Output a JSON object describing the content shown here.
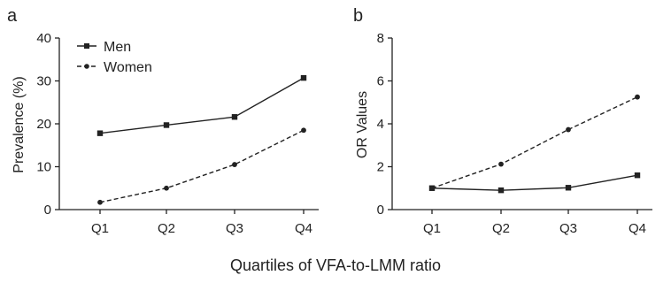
{
  "chart_data": [
    {
      "type": "line",
      "panel_label": "a",
      "categories": [
        "Q1",
        "Q2",
        "Q3",
        "Q4"
      ],
      "xlabel": "",
      "ylabel": "Prevalence (%)",
      "ylim": [
        0,
        40
      ],
      "yticks": [
        "0",
        "10",
        "20",
        "30",
        "40"
      ],
      "legend_position": "top-left",
      "series": [
        {
          "name": "Men",
          "style": "solid",
          "marker": "square",
          "values": [
            17.8,
            19.7,
            21.6,
            30.7
          ]
        },
        {
          "name": "Women",
          "style": "dashed",
          "marker": "circle",
          "values": [
            1.7,
            5.0,
            10.5,
            18.5
          ]
        }
      ]
    },
    {
      "type": "line",
      "panel_label": "b",
      "categories": [
        "Q1",
        "Q2",
        "Q3",
        "Q4"
      ],
      "xlabel": "",
      "ylabel": "OR Values",
      "ylim": [
        0,
        8
      ],
      "yticks": [
        "0",
        "2",
        "4",
        "6",
        "8"
      ],
      "series": [
        {
          "name": "Men",
          "style": "solid",
          "marker": "square",
          "values": [
            1.0,
            0.9,
            1.02,
            1.6
          ]
        },
        {
          "name": "Women",
          "style": "dashed",
          "marker": "circle",
          "values": [
            1.0,
            2.12,
            3.73,
            5.25
          ]
        }
      ]
    }
  ],
  "shared_xlabel": "Quartiles of VFA-to-LMM ratio"
}
